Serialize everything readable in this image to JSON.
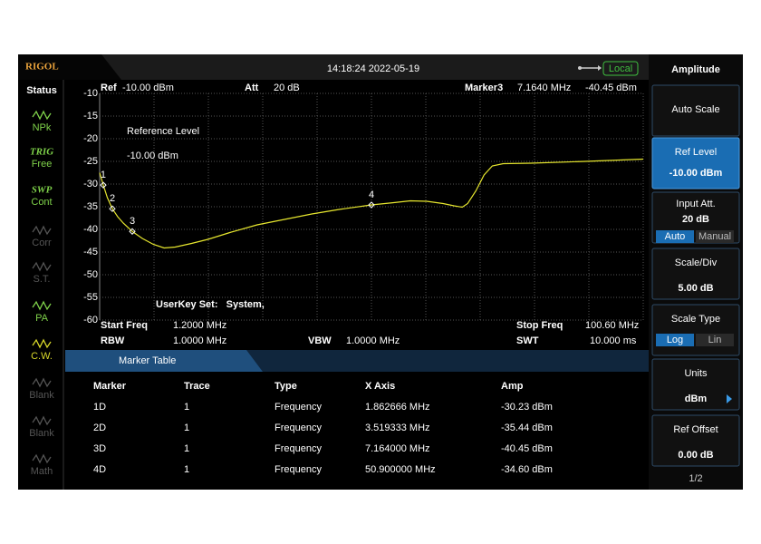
{
  "top_bar": {
    "logo": "RIGOL",
    "datetime": "14:18:24 2022-05-19",
    "mode": "Local"
  },
  "status": {
    "title": "Status",
    "items": [
      {
        "label": "NPk"
      },
      {
        "top": "TRIG",
        "label": "Free"
      },
      {
        "top": "SWP",
        "label": "Cont"
      },
      {
        "label": "Corr"
      },
      {
        "label": "S.T."
      },
      {
        "label": "PA"
      },
      {
        "label": "C.W."
      },
      {
        "label": "Blank"
      },
      {
        "label": "Blank"
      },
      {
        "label": "Math"
      }
    ]
  },
  "chart_data": {
    "type": "line",
    "header": {
      "ref": "Ref",
      "ref_value": "-10.00 dBm",
      "att": "Att",
      "att_value": "20 dB",
      "marker": "Marker3",
      "marker_freq": "7.1640 MHz",
      "marker_amp": "-40.45 dBm"
    },
    "annotations": [
      "Reference Level",
      "-10.00 dBm",
      "UserKey Set:   System,"
    ],
    "x": [
      1.2,
      1.86,
      2.6,
      3.52,
      4.5,
      5.5,
      7.16,
      9,
      11,
      13,
      15,
      18,
      21,
      25,
      30,
      35,
      40,
      45,
      50.9,
      55,
      58,
      61,
      64,
      66,
      67.5,
      68.5,
      70,
      71.5,
      73,
      75,
      80,
      90,
      100.6
    ],
    "values": [
      -27.5,
      -30.23,
      -33,
      -35.44,
      -37.2,
      -38.6,
      -40.45,
      -42,
      -43.3,
      -44.1,
      -43.9,
      -43.1,
      -42.2,
      -40.7,
      -39,
      -37.8,
      -36.6,
      -35.6,
      -34.6,
      -34.1,
      -33.7,
      -33.8,
      -34.3,
      -34.8,
      -35.1,
      -34.3,
      -31.5,
      -28,
      -26,
      -25.5,
      -25.4,
      -25,
      -24.5
    ],
    "color": "#e6e62e",
    "xlim": [
      1.2,
      100.6
    ],
    "ylim": [
      -60,
      -10
    ],
    "yticks": [
      -10,
      -15,
      -20,
      -25,
      -30,
      -35,
      -40,
      -45,
      -50,
      -55,
      -60
    ],
    "grid": true,
    "markers": [
      {
        "label": "1",
        "x": 1.862666,
        "y": -30.23
      },
      {
        "label": "2",
        "x": 3.519333,
        "y": -35.44
      },
      {
        "label": "3",
        "x": 7.164,
        "y": -40.45
      },
      {
        "label": "4",
        "x": 50.9,
        "y": -34.6
      }
    ]
  },
  "settings": [
    {
      "label": "Start Freq",
      "value": "1.2000 MHz"
    },
    {
      "label": "RBW",
      "value": "1.0000 MHz"
    },
    {
      "label": "VBW",
      "value": "1.0000 MHz"
    },
    {
      "label": "Stop Freq",
      "value": "100.60 MHz"
    },
    {
      "label": "SWT",
      "value": "10.000 ms"
    }
  ],
  "marker_table": {
    "title": "Marker Table",
    "columns": [
      "Marker",
      "Trace",
      "Type",
      "X Axis",
      "Amp"
    ],
    "rows": [
      [
        "1D",
        "1",
        "Frequency",
        "1.862666 MHz",
        "-30.23 dBm"
      ],
      [
        "2D",
        "1",
        "Frequency",
        "3.519333 MHz",
        "-35.44 dBm"
      ],
      [
        "3D",
        "1",
        "Frequency",
        "7.164000 MHz",
        "-40.45 dBm"
      ],
      [
        "4D",
        "1",
        "Frequency",
        "50.900000 MHz",
        "-34.60 dBm"
      ]
    ]
  },
  "menu": {
    "title": "Amplitude",
    "buttons": [
      {
        "label": "Auto Scale"
      },
      {
        "label": "Ref Level",
        "value": "-10.00 dBm"
      },
      {
        "label": "Input Att.",
        "value": "20 dB",
        "options": [
          "Auto",
          "Manual"
        ]
      },
      {
        "label": "Scale/Div",
        "value": "5.00 dB"
      },
      {
        "label": "Scale Type",
        "options": [
          "Log",
          "Lin"
        ]
      },
      {
        "label": "Units",
        "value": "dBm"
      },
      {
        "label": "Ref Offset",
        "value": "0.00 dB"
      }
    ],
    "page": "1/2"
  }
}
